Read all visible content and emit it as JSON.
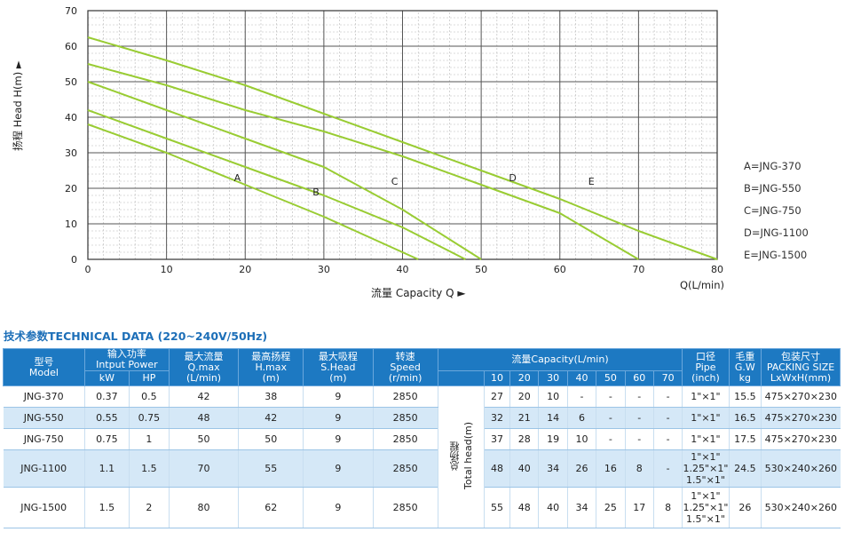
{
  "chart_data": {
    "type": "line",
    "xlabel": "流量 Capacity Q ►",
    "xunit": "Q(L/min)",
    "ylabel": "扬程 Head H(m) ►",
    "xlim": [
      0,
      80
    ],
    "ylim": [
      0,
      70
    ],
    "xticks": [
      "0",
      "10",
      "20",
      "30",
      "40",
      "50",
      "60",
      "70",
      "80"
    ],
    "yticks": [
      "0",
      "10",
      "20",
      "30",
      "40",
      "50",
      "60",
      "70"
    ],
    "grid": true,
    "legend_position": "right",
    "series": [
      {
        "name": "A",
        "points": [
          [
            0,
            38
          ],
          [
            10,
            30
          ],
          [
            20,
            21
          ],
          [
            30,
            12
          ],
          [
            42,
            0
          ]
        ],
        "label_at": [
          19,
          23
        ]
      },
      {
        "name": "B",
        "points": [
          [
            0,
            42
          ],
          [
            10,
            34
          ],
          [
            20,
            26
          ],
          [
            30,
            18
          ],
          [
            40,
            9
          ],
          [
            48,
            0
          ]
        ],
        "label_at": [
          29,
          19
        ]
      },
      {
        "name": "C",
        "points": [
          [
            0,
            50
          ],
          [
            10,
            42
          ],
          [
            20,
            34
          ],
          [
            30,
            26
          ],
          [
            40,
            14
          ],
          [
            50,
            0
          ]
        ],
        "label_at": [
          39,
          22
        ]
      },
      {
        "name": "D",
        "points": [
          [
            0,
            55
          ],
          [
            10,
            49
          ],
          [
            20,
            42
          ],
          [
            30,
            36
          ],
          [
            40,
            29
          ],
          [
            50,
            21
          ],
          [
            60,
            13
          ],
          [
            70,
            0
          ]
        ],
        "label_at": [
          54,
          23
        ]
      },
      {
        "name": "E",
        "points": [
          [
            0,
            62.5
          ],
          [
            10,
            56
          ],
          [
            20,
            49
          ],
          [
            30,
            41
          ],
          [
            40,
            33
          ],
          [
            50,
            25
          ],
          [
            60,
            17
          ],
          [
            70,
            8
          ],
          [
            80,
            0
          ]
        ],
        "label_at": [
          64,
          22
        ]
      }
    ],
    "legend": [
      "A=JNG-370",
      "B=JNG-550",
      "C=JNG-750",
      "D=JNG-1100",
      "E=JNG-1500"
    ],
    "line_color": "#99cc33"
  },
  "table": {
    "title": "技术参数TECHNICAL DATA (220~240V/50Hz)",
    "headers": {
      "model": "型号\nModel",
      "power": "输入功率\nIntput Power",
      "kw": "kW",
      "hp": "HP",
      "qmax": "最大流量\nQ.max\n(L/min)",
      "hmax": "最高扬程\nH.max\n(m)",
      "shead": "最大吸程\nS.Head\n(m)",
      "speed": "转速\nSpeed\n(r/min)",
      "capacity": "流量Capacity(L/min)",
      "capacities": [
        "10",
        "20",
        "30",
        "40",
        "50",
        "60",
        "70"
      ],
      "pipe": "口径\nPipe\n(inch)",
      "gw": "毛重\nG.W\nkg",
      "packing": "包装尺寸\nPACKING SIZE\nLxWxH(mm)",
      "total_head": "总扬程\nTotal head(m)"
    },
    "rows": [
      {
        "model": "JNG-370",
        "kw": "0.37",
        "hp": "0.5",
        "qmax": "42",
        "hmax": "38",
        "shead": "9",
        "speed": "2850",
        "heads": [
          "27",
          "20",
          "10",
          "-",
          "-",
          "-",
          "-"
        ],
        "pipe": "1\"×1\"",
        "gw": "15.5",
        "packing": "475×270×230"
      },
      {
        "model": "JNG-550",
        "kw": "0.55",
        "hp": "0.75",
        "qmax": "48",
        "hmax": "42",
        "shead": "9",
        "speed": "2850",
        "heads": [
          "32",
          "21",
          "14",
          "6",
          "-",
          "-",
          "-"
        ],
        "pipe": "1\"×1\"",
        "gw": "16.5",
        "packing": "475×270×230"
      },
      {
        "model": "JNG-750",
        "kw": "0.75",
        "hp": "1",
        "qmax": "50",
        "hmax": "50",
        "shead": "9",
        "speed": "2850",
        "heads": [
          "37",
          "28",
          "19",
          "10",
          "-",
          "-",
          "-"
        ],
        "pipe": "1\"×1\"",
        "gw": "17.5",
        "packing": "475×270×230"
      },
      {
        "model": "JNG-1100",
        "kw": "1.1",
        "hp": "1.5",
        "qmax": "70",
        "hmax": "55",
        "shead": "9",
        "speed": "2850",
        "heads": [
          "48",
          "40",
          "34",
          "26",
          "16",
          "8",
          "-"
        ],
        "pipe": "1\"×1\"\n1.25\"×1\"\n1.5\"×1\"",
        "gw": "24.5",
        "packing": "530×240×260"
      },
      {
        "model": "JNG-1500",
        "kw": "1.5",
        "hp": "2",
        "qmax": "80",
        "hmax": "62",
        "shead": "9",
        "speed": "2850",
        "heads": [
          "55",
          "48",
          "40",
          "34",
          "25",
          "17",
          "8"
        ],
        "pipe": "1\"×1\"\n1.25\"×1\"\n1.5\"×1\"",
        "gw": "26",
        "packing": "530×240×260"
      }
    ]
  }
}
